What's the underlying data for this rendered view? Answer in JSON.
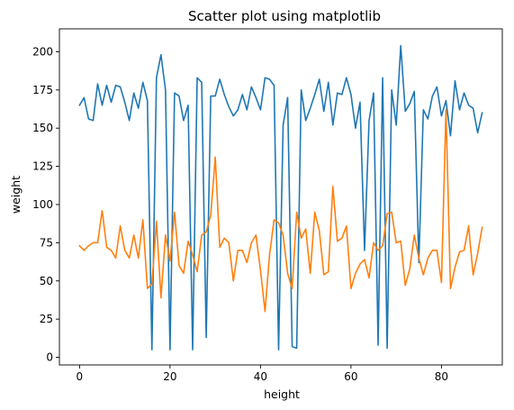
{
  "chart_data": {
    "type": "line",
    "title": "Scatter plot using matplotlib",
    "xlabel": "height",
    "ylabel": "weight",
    "xlim": [
      -4.45,
      93.45
    ],
    "ylim": [
      -5,
      215
    ],
    "x_ticks": [
      0,
      20,
      40,
      60,
      80
    ],
    "y_ticks": [
      0,
      25,
      50,
      75,
      100,
      125,
      150,
      175,
      200
    ],
    "grid": false,
    "legend": "none",
    "x": [
      0,
      1,
      2,
      3,
      4,
      5,
      6,
      7,
      8,
      9,
      10,
      11,
      12,
      13,
      14,
      15,
      16,
      17,
      18,
      19,
      20,
      21,
      22,
      23,
      24,
      25,
      26,
      27,
      28,
      29,
      30,
      31,
      32,
      33,
      34,
      35,
      36,
      37,
      38,
      39,
      40,
      41,
      42,
      43,
      44,
      45,
      46,
      47,
      48,
      49,
      50,
      51,
      52,
      53,
      54,
      55,
      56,
      57,
      58,
      59,
      60,
      61,
      62,
      63,
      64,
      65,
      66,
      67,
      68,
      69,
      70,
      71,
      72,
      73,
      74,
      75,
      76,
      77,
      78,
      79,
      80,
      81,
      82,
      83,
      84,
      85,
      86,
      87,
      88,
      89
    ],
    "series": [
      {
        "color": "#1f77b4",
        "values": [
          165,
          170,
          156,
          155,
          179,
          165,
          178,
          167,
          178,
          177,
          167,
          155,
          173,
          163,
          180,
          168,
          5,
          183,
          198,
          175,
          5,
          173,
          171,
          155,
          165,
          5,
          183,
          180,
          13,
          171,
          171,
          182,
          172,
          164,
          158,
          162,
          172,
          162,
          177,
          170,
          162,
          183,
          182,
          178,
          5,
          152,
          170,
          7,
          6,
          175,
          155,
          163,
          172,
          182,
          161,
          180,
          152,
          173,
          172,
          183,
          172,
          150,
          167,
          70,
          155,
          173,
          8,
          183,
          6,
          175,
          152,
          204,
          161,
          166,
          174,
          62,
          162,
          156,
          171,
          177,
          158,
          168,
          145,
          181,
          162,
          173,
          165,
          163,
          147,
          160
        ]
      },
      {
        "color": "#ff7f0e",
        "values": [
          73,
          70,
          73,
          75,
          75,
          96,
          72,
          70,
          65,
          86,
          70,
          65,
          80,
          65,
          90,
          45,
          48,
          89,
          39,
          80,
          63,
          95,
          60,
          55,
          76,
          67,
          56,
          80,
          82,
          93,
          131,
          72,
          78,
          75,
          50,
          70,
          70,
          62,
          75,
          80,
          57,
          30,
          67,
          90,
          88,
          80,
          55,
          45,
          95,
          78,
          84,
          55,
          95,
          83,
          54,
          56,
          112,
          76,
          78,
          86,
          45,
          55,
          61,
          64,
          52,
          75,
          70,
          73,
          94,
          95,
          75,
          76,
          47,
          58,
          80,
          65,
          54,
          65,
          70,
          70,
          49,
          162,
          45,
          59,
          69,
          70,
          86,
          54,
          68,
          85
        ]
      }
    ]
  }
}
